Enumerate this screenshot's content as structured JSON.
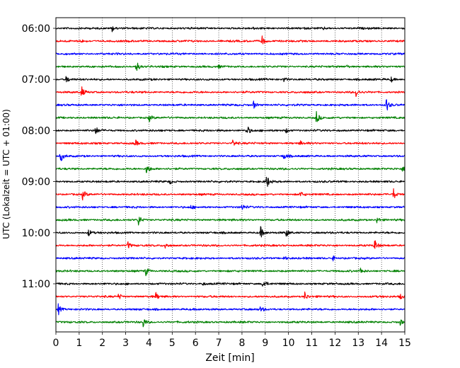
{
  "chart_data": {
    "type": "line",
    "title": "",
    "xlabel": "Zeit  [min]",
    "ylabel": "UTC (Lokalzeit = UTC + 01:00)",
    "xlim": [
      0,
      15
    ],
    "x_ticks": [
      0,
      1,
      2,
      3,
      4,
      5,
      6,
      7,
      8,
      9,
      10,
      11,
      12,
      13,
      14,
      15
    ],
    "x_tick_labels": [
      "0",
      "1",
      "2",
      "3",
      "4",
      "5",
      "6",
      "7",
      "8",
      "9",
      "10",
      "11",
      "12",
      "13",
      "14",
      "15"
    ],
    "y_ticks": [
      {
        "label": "06:00",
        "trace_index": 0
      },
      {
        "label": "07:00",
        "trace_index": 4
      },
      {
        "label": "08:00",
        "trace_index": 8
      },
      {
        "label": "09:00",
        "trace_index": 12
      },
      {
        "label": "10:00",
        "trace_index": 16
      },
      {
        "label": "11:00",
        "trace_index": 20
      }
    ],
    "vertical_grid": "dotted",
    "trace_minutes": 15,
    "color_cycle": [
      "#000000",
      "#ff0000",
      "#0000ff",
      "#008000"
    ],
    "traces": [
      {
        "start": "06:00",
        "color": "#000000",
        "events": [
          {
            "t": 2.4,
            "a": 0.55
          },
          {
            "t": 8.5,
            "a": 0.15
          },
          {
            "t": 11.5,
            "a": 0.15
          }
        ]
      },
      {
        "start": "06:15",
        "color": "#ff0000",
        "events": [
          {
            "t": 1.05,
            "a": 0.25
          },
          {
            "t": 8.85,
            "a": 0.85
          }
        ]
      },
      {
        "start": "06:30",
        "color": "#0000ff",
        "events": []
      },
      {
        "start": "06:45",
        "color": "#008000",
        "events": [
          {
            "t": 3.45,
            "a": 1.0
          },
          {
            "t": 7.0,
            "a": 0.2
          },
          {
            "t": 12.5,
            "a": 0.2
          }
        ]
      },
      {
        "start": "07:00",
        "color": "#000000",
        "events": [
          {
            "t": 0.45,
            "a": 0.65
          },
          {
            "t": 9.8,
            "a": 0.4
          },
          {
            "t": 14.4,
            "a": 0.45
          }
        ]
      },
      {
        "start": "07:15",
        "color": "#ff0000",
        "events": [
          {
            "t": 1.1,
            "a": 0.85
          },
          {
            "t": 12.9,
            "a": 0.7
          }
        ]
      },
      {
        "start": "07:30",
        "color": "#0000ff",
        "events": [
          {
            "t": 8.5,
            "a": 0.6
          },
          {
            "t": 14.2,
            "a": 1.2
          }
        ]
      },
      {
        "start": "07:45",
        "color": "#008000",
        "events": [
          {
            "t": 4.0,
            "a": 0.6
          },
          {
            "t": 11.2,
            "a": 1.0
          }
        ]
      },
      {
        "start": "08:00",
        "color": "#000000",
        "events": [
          {
            "t": 1.7,
            "a": 0.7
          },
          {
            "t": 8.2,
            "a": 1.0
          },
          {
            "t": 9.9,
            "a": 0.35
          }
        ]
      },
      {
        "start": "08:15",
        "color": "#ff0000",
        "events": [
          {
            "t": 3.4,
            "a": 0.55
          },
          {
            "t": 7.6,
            "a": 0.6
          },
          {
            "t": 10.5,
            "a": 0.3
          }
        ]
      },
      {
        "start": "08:30",
        "color": "#0000ff",
        "events": [
          {
            "t": 0.2,
            "a": 0.95
          },
          {
            "t": 9.8,
            "a": 0.55
          }
        ]
      },
      {
        "start": "08:45",
        "color": "#008000",
        "events": [
          {
            "t": 3.9,
            "a": 1.0
          },
          {
            "t": 14.9,
            "a": 0.35
          }
        ]
      },
      {
        "start": "09:00",
        "color": "#000000",
        "events": [
          {
            "t": 9.05,
            "a": 1.2
          },
          {
            "t": 4.9,
            "a": 0.3
          }
        ]
      },
      {
        "start": "09:15",
        "color": "#ff0000",
        "events": [
          {
            "t": 1.15,
            "a": 0.75
          },
          {
            "t": 10.5,
            "a": 0.5
          },
          {
            "t": 14.5,
            "a": 1.0
          }
        ]
      },
      {
        "start": "09:30",
        "color": "#0000ff",
        "events": [
          {
            "t": 8.0,
            "a": 0.5
          },
          {
            "t": 5.8,
            "a": 0.3
          }
        ]
      },
      {
        "start": "09:45",
        "color": "#008000",
        "events": [
          {
            "t": 3.55,
            "a": 0.85
          },
          {
            "t": 13.8,
            "a": 0.5
          }
        ]
      },
      {
        "start": "10:00",
        "color": "#000000",
        "events": [
          {
            "t": 1.4,
            "a": 0.55
          },
          {
            "t": 8.8,
            "a": 0.9
          },
          {
            "t": 9.9,
            "a": 0.65
          }
        ]
      },
      {
        "start": "10:15",
        "color": "#ff0000",
        "events": [
          {
            "t": 3.1,
            "a": 0.6
          },
          {
            "t": 4.7,
            "a": 0.45
          },
          {
            "t": 13.7,
            "a": 0.95
          }
        ]
      },
      {
        "start": "10:30",
        "color": "#0000ff",
        "events": [
          {
            "t": 9.8,
            "a": 0.35
          },
          {
            "t": 11.9,
            "a": 0.4
          }
        ]
      },
      {
        "start": "10:45",
        "color": "#008000",
        "events": [
          {
            "t": 3.85,
            "a": 0.8
          },
          {
            "t": 13.1,
            "a": 0.45
          }
        ]
      },
      {
        "start": "11:00",
        "color": "#000000",
        "events": [
          {
            "t": 8.9,
            "a": 0.95
          },
          {
            "t": 6.3,
            "a": 0.25
          }
        ]
      },
      {
        "start": "11:15",
        "color": "#ff0000",
        "events": [
          {
            "t": 2.7,
            "a": 0.5
          },
          {
            "t": 4.3,
            "a": 0.55
          },
          {
            "t": 10.7,
            "a": 0.7
          },
          {
            "t": 14.8,
            "a": 0.45
          }
        ]
      },
      {
        "start": "11:30",
        "color": "#0000ff",
        "events": [
          {
            "t": 0.1,
            "a": 0.9
          },
          {
            "t": 8.8,
            "a": 0.5
          }
        ]
      },
      {
        "start": "11:45",
        "color": "#008000",
        "events": [
          {
            "t": 3.75,
            "a": 0.8
          },
          {
            "t": 14.8,
            "a": 0.45
          }
        ]
      }
    ]
  }
}
